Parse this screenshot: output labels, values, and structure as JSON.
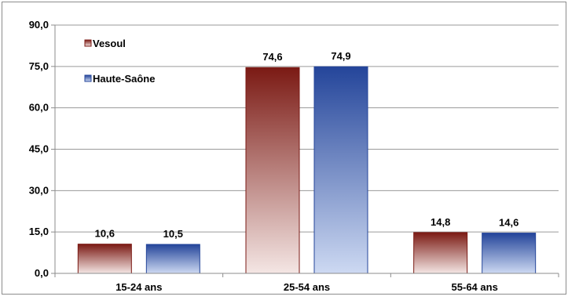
{
  "chart_data": {
    "type": "bar",
    "categories": [
      "15-24 ans",
      "25-54 ans",
      "55-64 ans"
    ],
    "series": [
      {
        "name": "Vesoul",
        "values": [
          10.6,
          74.6,
          14.8
        ],
        "color_dark": "#7b1a14",
        "color_light": "#f4e6e4"
      },
      {
        "name": "Haute-Saône",
        "values": [
          10.5,
          74.9,
          14.6
        ],
        "color_dark": "#24459a",
        "color_light": "#cdd9f2"
      }
    ],
    "value_labels": [
      [
        "10,6",
        "74,6",
        "14,8"
      ],
      [
        "10,5",
        "74,9",
        "14,6"
      ]
    ],
    "ylim": [
      0,
      90
    ],
    "yticks": [
      0,
      15,
      30,
      45,
      60,
      75,
      90
    ],
    "ytick_labels": [
      "0,0",
      "15,0",
      "30,0",
      "45,0",
      "60,0",
      "75,0",
      "90,0"
    ],
    "grid": true,
    "legend_position": "top-left",
    "title": "",
    "xlabel": "",
    "ylabel": ""
  }
}
